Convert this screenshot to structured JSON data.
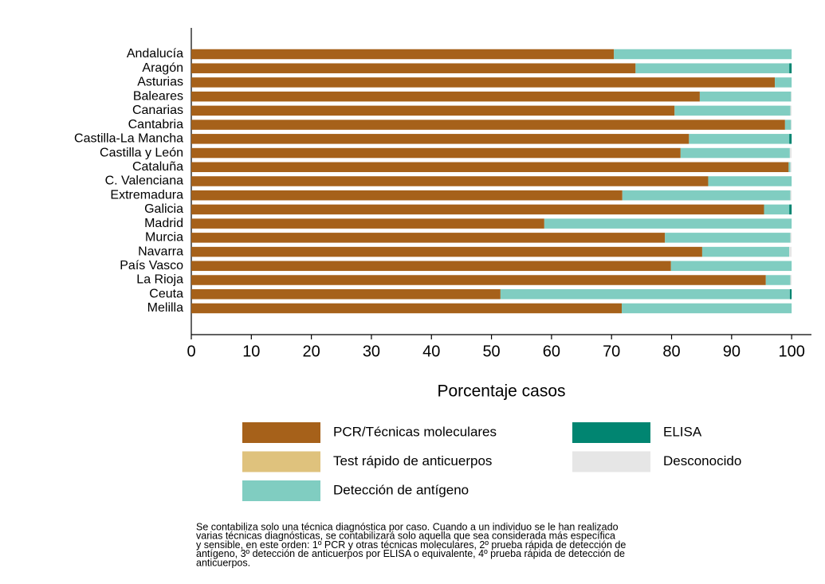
{
  "chart_data": {
    "type": "stacked-barh",
    "xlabel": "Porcentaje casos",
    "categories": [
      "Andalucía",
      "Aragón",
      "Asturias",
      "Baleares",
      "Canarias",
      "Cantabria",
      "Castilla-La Mancha",
      "Castilla y León",
      "Cataluña",
      "C. Valenciana",
      "Extremadura",
      "Galicia",
      "Madrid",
      "Murcia",
      "Navarra",
      "País Vasco",
      "La Rioja",
      "Ceuta",
      "Melilla"
    ],
    "series": [
      {
        "name": "PCR/Técnicas moleculares",
        "color": "#a6611a",
        "values": [
          70.4,
          74.0,
          97.2,
          84.7,
          80.5,
          98.9,
          82.9,
          81.5,
          99.5,
          86.1,
          71.8,
          95.4,
          58.8,
          78.9,
          85.1,
          79.9,
          95.7,
          51.5,
          71.7
        ]
      },
      {
        "name": "Test rápido de anticuerpos",
        "color": "#dfc27d",
        "values": [
          0,
          0,
          0,
          0,
          0,
          0,
          0,
          0,
          0,
          0,
          0,
          0,
          0,
          0,
          0,
          0,
          0,
          0,
          0
        ]
      },
      {
        "name": "Detección de antígeno",
        "color": "#80cdc1",
        "values": [
          29.6,
          25.6,
          2.8,
          15.2,
          19.3,
          1.0,
          16.7,
          18.2,
          0.3,
          13.9,
          28.0,
          4.2,
          41.2,
          20.9,
          14.5,
          20.1,
          4.1,
          48.2,
          28.3
        ]
      },
      {
        "name": "ELISA",
        "color": "#018571",
        "values": [
          0,
          0.4,
          0,
          0,
          0,
          0,
          0.4,
          0,
          0,
          0,
          0,
          0.4,
          0,
          0,
          0,
          0,
          0,
          0.3,
          0
        ]
      },
      {
        "name": "Desconocido",
        "color": "#e6e6e6",
        "values": [
          0,
          0,
          0,
          0.1,
          0.2,
          0.1,
          0,
          0.3,
          0.2,
          0,
          0.2,
          0,
          0,
          0.2,
          0.4,
          0,
          0.2,
          0,
          0
        ]
      }
    ],
    "xlim": [
      0,
      103.3
    ],
    "xticks": [
      0,
      10,
      20,
      30,
      40,
      50,
      60,
      70,
      80,
      90,
      100
    ],
    "note": [
      "Se contabiliza solo una técnica diagnóstica por caso. Cuando a un individuo se le han realizado",
      "varias técnicas diagnósticas, se contabilizará solo aquella que sea considerada más específica",
      "y sensible, en este orden: 1º PCR y otras técnicas moleculares, 2º prueba rápida de detección de",
      "antígeno, 3º detección de anticuerpos por ELISA o equivalente, 4º prueba rápida de detección de",
      "anticuerpos."
    ]
  }
}
